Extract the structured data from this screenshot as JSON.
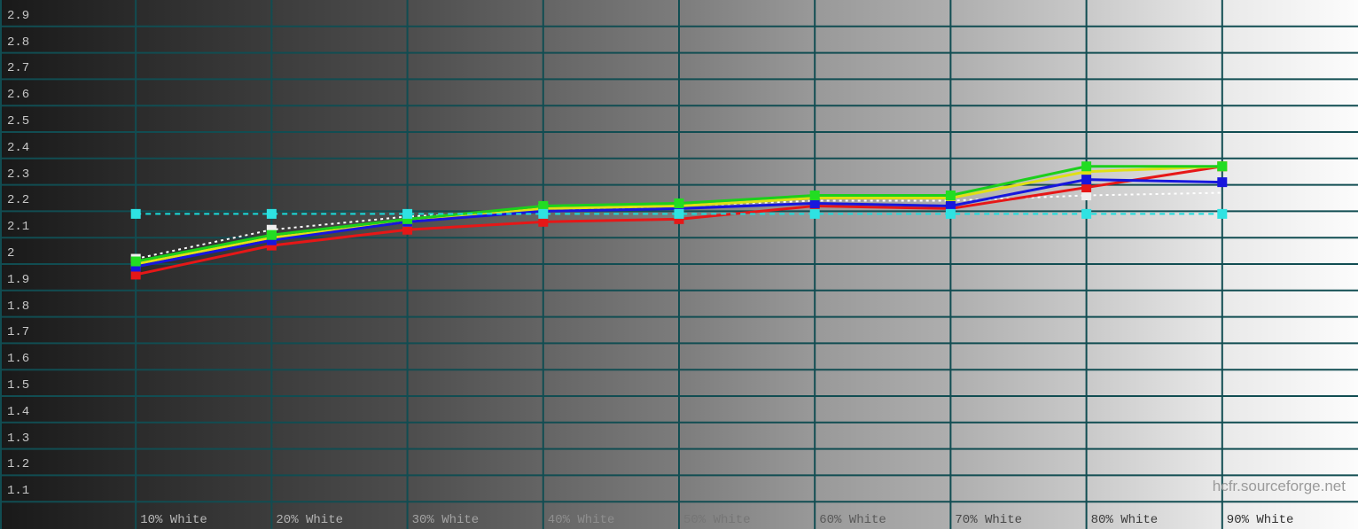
{
  "watermark": "hcfr.sourceforge.net",
  "background": {
    "gradient_stops": [
      "#191919 0%",
      "#2b2b2b 10%",
      "#4d4d4d 30%",
      "#7c7c7c 50%",
      "#999999 60%",
      "#aeaeae 70%",
      "#c9c9c9 80%",
      "#e9e9e9 90%",
      "#fcfcfc 100%"
    ]
  },
  "grid": {
    "color": "#114d52",
    "vertical_at_percent": [
      0,
      10,
      20,
      30,
      40,
      50,
      60,
      70,
      80,
      90
    ],
    "horizontal_every": 0.1
  },
  "chart_data": {
    "type": "line",
    "title": "",
    "xlabel": "",
    "ylabel": "",
    "legend": "none",
    "ylim": [
      1.0,
      3.0
    ],
    "y_ticks": [
      "2.9",
      "2.8",
      "2.7",
      "2.6",
      "2.5",
      "2.4",
      "2.3",
      "2.2",
      "2.1",
      "2",
      "1.9",
      "1.8",
      "1.7",
      "1.6",
      "1.5",
      "1.4",
      "1.3",
      "1.2",
      "1.1"
    ],
    "x_values": [
      10,
      20,
      30,
      40,
      50,
      60,
      70,
      80,
      90
    ],
    "x_labels": [
      {
        "text": "10% White",
        "color": "#b8b8b8"
      },
      {
        "text": "20% White",
        "color": "#b2b2b2"
      },
      {
        "text": "30% White",
        "color": "#a2a2a2"
      },
      {
        "text": "40% White",
        "color": "#8e8e8e"
      },
      {
        "text": "50% White",
        "color": "#757575"
      },
      {
        "text": "60% White",
        "color": "#595959"
      },
      {
        "text": "70% White",
        "color": "#484848"
      },
      {
        "text": "80% White",
        "color": "#3c3c3c"
      },
      {
        "text": "90% White",
        "color": "#323232"
      }
    ],
    "series": [
      {
        "id": "white-dotted",
        "role": "measured luma (dotted)",
        "color": "#ffffff",
        "marker_color": "#f0f0f0",
        "style": "dotted",
        "width": 2,
        "values": [
          2.02,
          2.13,
          2.18,
          2.2,
          2.22,
          2.24,
          2.24,
          2.26,
          2.27
        ],
        "markers": [
          0,
          1,
          7
        ]
      },
      {
        "id": "red-gamma",
        "role": "red gamma",
        "color": "#e61717",
        "marker_color": "#e61717",
        "style": "solid",
        "width": 3,
        "values": [
          1.96,
          2.07,
          2.13,
          2.16,
          2.17,
          2.22,
          2.21,
          2.29,
          2.37
        ],
        "markers": "all"
      },
      {
        "id": "yellow-gamma",
        "role": "luminance gamma",
        "color": "#e0e014",
        "marker_color": "#e0e014",
        "style": "solid",
        "width": 3,
        "values": [
          2.0,
          2.1,
          2.16,
          2.21,
          2.22,
          2.25,
          2.25,
          2.35,
          2.37
        ],
        "markers": "all"
      },
      {
        "id": "blue-gamma",
        "role": "blue gamma",
        "color": "#1717dd",
        "marker_color": "#1717dd",
        "style": "solid",
        "width": 3,
        "values": [
          1.99,
          2.09,
          2.16,
          2.2,
          2.21,
          2.23,
          2.22,
          2.32,
          2.31
        ],
        "markers": "all"
      },
      {
        "id": "green-gamma",
        "role": "green gamma",
        "color": "#1ccf1c",
        "marker_color": "#22dd22",
        "style": "solid",
        "width": 3,
        "values": [
          2.01,
          2.11,
          2.17,
          2.22,
          2.23,
          2.26,
          2.26,
          2.37,
          2.37
        ],
        "markers": "all"
      },
      {
        "id": "cyan-reference",
        "role": "reference gamma (target)",
        "color": "#17dede",
        "marker_color": "#2ee2e2",
        "style": "dashed",
        "width": 2,
        "values": [
          2.19,
          2.19,
          2.19,
          2.19,
          2.19,
          2.19,
          2.19,
          2.19,
          2.19
        ],
        "markers": "all"
      }
    ]
  }
}
